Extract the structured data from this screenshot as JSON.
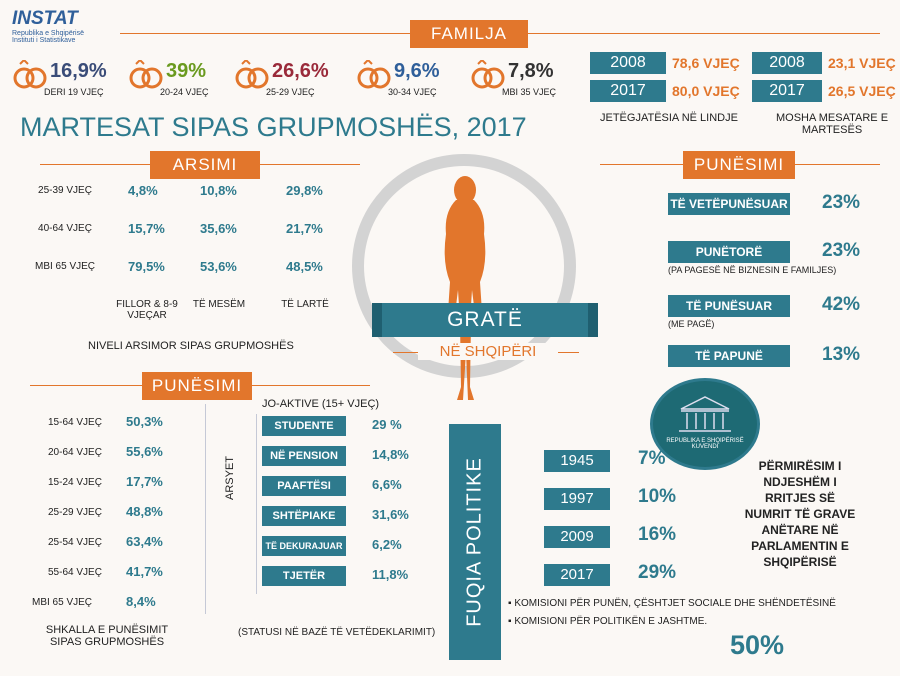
{
  "colors": {
    "orange": "#e2762c",
    "teal": "#2e7a8d",
    "navy": "#3a4c78",
    "green": "#6a9a1f",
    "maroon": "#9a2a3a",
    "blue": "#2f5f9a",
    "dark": "#333333"
  },
  "logo": {
    "brand": "INSTAT",
    "line1": "Republika e Shqipërisë",
    "line2": "Instituti i Statistikave"
  },
  "familja": {
    "title": "FAMILJA",
    "marriages": [
      {
        "pct": "16,9%",
        "age": "DERI 19 VJEÇ",
        "color": "#3a4c78"
      },
      {
        "pct": "39%",
        "age": "20-24 VJEÇ",
        "color": "#6a9a1f"
      },
      {
        "pct": "26,6%",
        "age": "25-29 VJEÇ",
        "color": "#9a2a3a"
      },
      {
        "pct": "9,6%",
        "age": "30-34 VJEÇ",
        "color": "#2f5f9a"
      },
      {
        "pct": "7,8%",
        "age": "MBI 35 VJEÇ",
        "color": "#333333"
      }
    ],
    "heading": "MARTESAT SIPAS GRUPMOSHËS, 2017",
    "life_expectancy": {
      "rows": [
        {
          "year": "2008",
          "value": "78,6 VJEÇ"
        },
        {
          "year": "2017",
          "value": "80,0 VJEÇ"
        }
      ],
      "label": "JETËGJATËSIA NË LINDJE"
    },
    "marriage_age": {
      "rows": [
        {
          "year": "2008",
          "value": "23,1 VJEÇ"
        },
        {
          "year": "2017",
          "value": "26,5 VJEÇ"
        }
      ],
      "label": "MOSHA MESATARE E MARTESËS"
    }
  },
  "arsimi": {
    "title": "ARSIMI",
    "rows": [
      {
        "age": "25-39 VJEÇ",
        "values": [
          "4,8%",
          "10,8%",
          "29,8%"
        ]
      },
      {
        "age": "40-64 VJEÇ",
        "values": [
          "15,7%",
          "35,6%",
          "21,7%"
        ]
      },
      {
        "age": "MBI 65 VJEÇ",
        "values": [
          "79,5%",
          "53,6%",
          "48,5%"
        ]
      }
    ],
    "columns": [
      "FILLOR & 8-9 VJEÇAR",
      "TË MESËM",
      "TË LARTË"
    ],
    "caption": "NIVELI ARSIMOR SIPAS GRUPMOSHËS"
  },
  "center": {
    "title": "GRATË",
    "subtitle": "NË SHQIPËRI"
  },
  "punesimi_right": {
    "title": "PUNËSIMI",
    "items": [
      {
        "label": "TË VETËPUNËSUAR",
        "note": "",
        "value": "23%"
      },
      {
        "label": "PUNËTORË",
        "note": "(PA PAGESË NË BIZNESIN E FAMILJES)",
        "value": "23%"
      },
      {
        "label": "TË PUNËSUAR",
        "note": "(ME PAGË)",
        "value": "42%"
      },
      {
        "label": "TË PAPUNË",
        "note": "",
        "value": "13%"
      }
    ]
  },
  "punesimi_left": {
    "title": "PUNËSIMI",
    "rates": [
      {
        "age": "15-64 VJEÇ",
        "value": "50,3%"
      },
      {
        "age": "20-64 VJEÇ",
        "value": "55,6%"
      },
      {
        "age": "15-24 VJEÇ",
        "value": "17,7%"
      },
      {
        "age": "25-29 VJEÇ",
        "value": "48,8%"
      },
      {
        "age": "25-54 VJEÇ",
        "value": "63,4%"
      },
      {
        "age": "55-64 VJEÇ",
        "value": "41,7%"
      },
      {
        "age": "MBI 65 VJEÇ",
        "value": "8,4%"
      }
    ],
    "rates_caption": "SHKALLA E PUNËSIMIT SIPAS GRUPMOSHËS",
    "inactive_title": "JO-AKTIVE (15+ VJEÇ)",
    "reasons_label": "ARSYET",
    "inactive": [
      {
        "label": "STUDENTE",
        "value": "29 %"
      },
      {
        "label": "NË PENSION",
        "value": "14,8%"
      },
      {
        "label": "PAAFTËSI",
        "value": "6,6%"
      },
      {
        "label": "SHTËPIAKE",
        "value": "31,6%"
      },
      {
        "label": "TË DEKURAJUAR",
        "value": "6,2%"
      },
      {
        "label": "TJETËR",
        "value": "11,8%"
      }
    ],
    "inactive_caption": "(STATUSI NË BAZË TË VETËDEKLARIMIT)"
  },
  "fuqia": {
    "title": "FUQIA POLITIKE",
    "emblem_text": "REPUBLIKA E SHQIPËRISË KUVENDI",
    "years": [
      {
        "year": "1945",
        "value": "7%"
      },
      {
        "year": "1997",
        "value": "10%"
      },
      {
        "year": "2009",
        "value": "16%"
      },
      {
        "year": "2017",
        "value": "29%"
      }
    ],
    "description": "PËRMIRËSIM I NDJESHËM I RRITJES SË NUMRIT TË GRAVE ANËTARE NË PARLAMENTIN E SHQIPËRISË",
    "committees": [
      "KOMISIONI PËR PUNËN, ÇËSHTJET SOCIALE DHE SHËNDETËSINË",
      "KOMISIONI PËR POLITIKËN E JASHTME."
    ],
    "committee_value": "50%"
  }
}
